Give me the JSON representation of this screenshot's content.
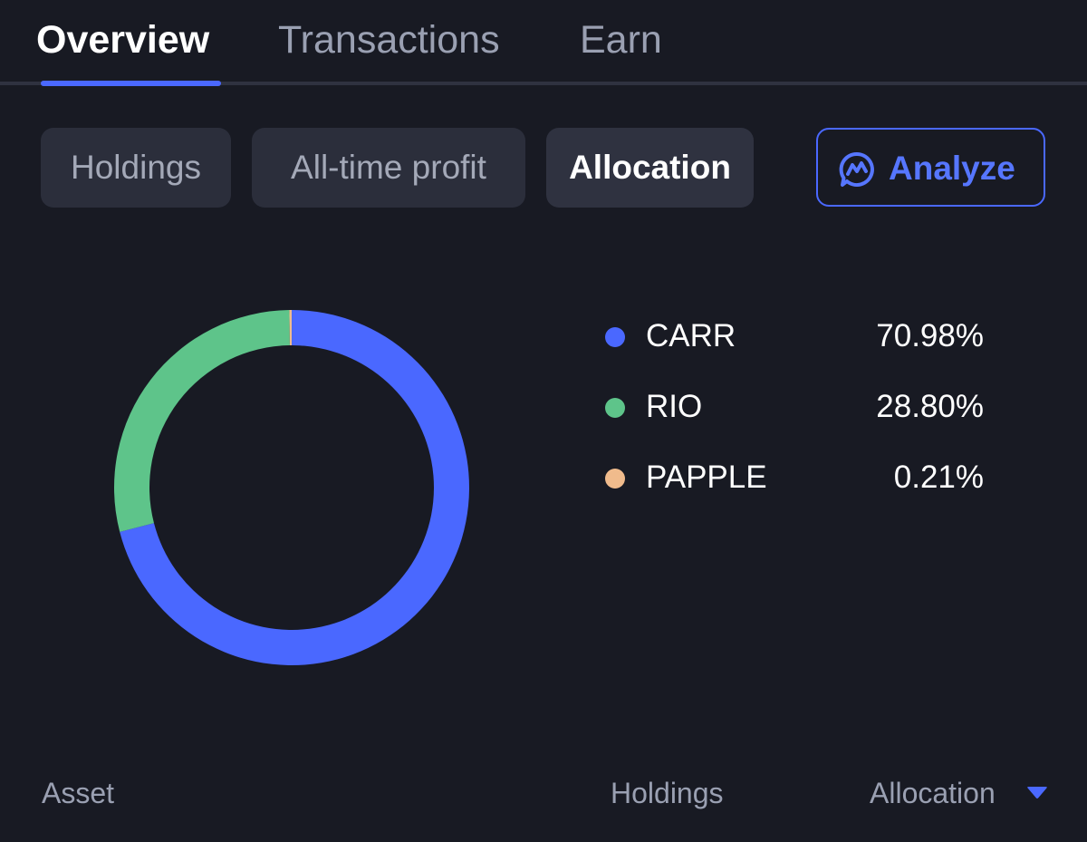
{
  "tabs": {
    "overview": "Overview",
    "transactions": "Transactions",
    "earn": "Earn",
    "active": "Overview"
  },
  "segments": {
    "holdings": "Holdings",
    "all_time_profit": "All-time profit",
    "allocation": "Allocation",
    "selected": "Allocation"
  },
  "analyze_button": {
    "label": "Analyze",
    "icon": "analyze-chat-icon"
  },
  "chart_data": {
    "type": "pie",
    "style": "donut",
    "series": [
      {
        "name": "CARR",
        "value": 70.98,
        "label": "70.98%",
        "color": "#4a68ff"
      },
      {
        "name": "RIO",
        "value": 28.8,
        "label": "28.80%",
        "color": "#5ec48a"
      },
      {
        "name": "PAPPLE",
        "value": 0.21,
        "label": "0.21%",
        "color": "#f0bb8c"
      }
    ],
    "legend_position": "right"
  },
  "table_header": {
    "asset": "Asset",
    "holdings": "Holdings",
    "allocation": "Allocation",
    "sort_icon": "caret-down-icon"
  },
  "colors": {
    "background": "#181a23",
    "accent": "#4a68ff",
    "chip_background": "#2b2e3b"
  }
}
